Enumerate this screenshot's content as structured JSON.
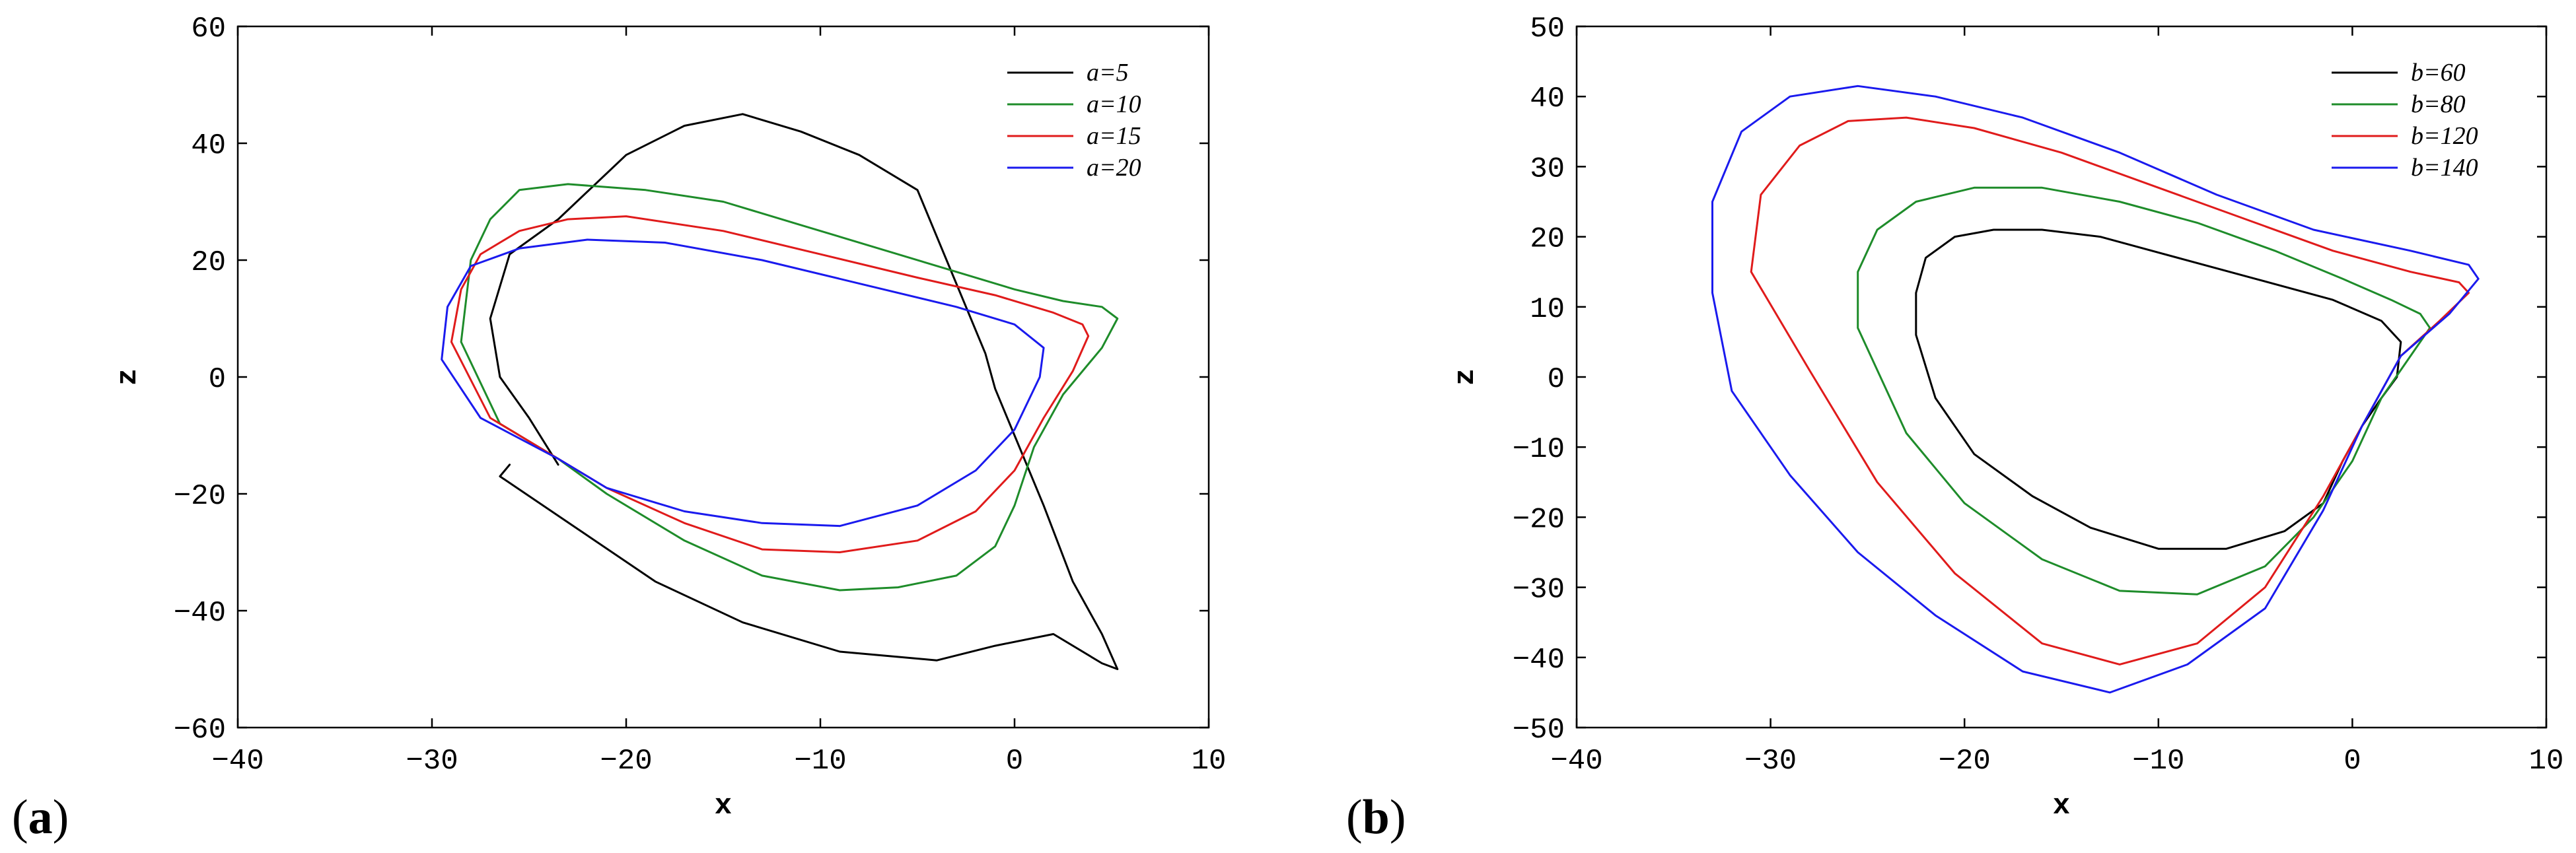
{
  "chart_data": [
    {
      "type": "line",
      "panel_label": "a",
      "xlabel": "x",
      "ylabel": "z",
      "xlim": [
        -40,
        10
      ],
      "ylim": [
        -60,
        60
      ],
      "xticks": [
        -40,
        -30,
        -20,
        -10,
        0,
        10
      ],
      "yticks": [
        -60,
        -40,
        -20,
        0,
        20,
        40,
        60
      ],
      "grid": false,
      "legend_position": "top-right",
      "series": [
        {
          "name": "a=5",
          "color": "#000000",
          "x": [
            -23.5,
            -25,
            -26.5,
            -27,
            -26,
            -23.5,
            -20,
            -17,
            -14,
            -11,
            -8,
            -5,
            -3.5,
            -2.5,
            -1.5,
            -1,
            0,
            1.5,
            3,
            4.5,
            5.3,
            4.5,
            2,
            -1,
            -4,
            -9,
            -14,
            -18.5,
            -22.5,
            -26.5,
            -26
          ],
          "z": [
            -15,
            -7,
            0,
            10,
            21,
            27,
            38,
            43,
            45,
            42,
            38,
            32,
            20,
            12,
            4,
            -2,
            -10,
            -22,
            -35,
            -44,
            -50,
            -49,
            -44,
            -46,
            -48.5,
            -47,
            -42,
            -35,
            -26,
            -17,
            -15
          ]
        },
        {
          "name": "a=10",
          "color": "#1e8c2a",
          "x": [
            -23.5,
            -26.5,
            -28.5,
            -28,
            -27,
            -25.5,
            -23,
            -19,
            -15,
            -11,
            -7,
            -3,
            0,
            2.5,
            4.5,
            5.3,
            4.5,
            2.5,
            1,
            0,
            -1,
            -3,
            -6,
            -9,
            -13,
            -17,
            -21,
            -23.5
          ],
          "z": [
            -14,
            -8,
            6,
            20,
            27,
            32,
            33,
            32,
            30,
            26,
            22,
            18,
            15,
            13,
            12,
            10,
            5,
            -3,
            -12,
            -22,
            -29,
            -34,
            -36,
            -36.5,
            -34,
            -28,
            -20,
            -14
          ]
        },
        {
          "name": "a=15",
          "color": "#e01b1b",
          "x": [
            -23.5,
            -27,
            -29,
            -28.5,
            -27.5,
            -25.5,
            -23,
            -20,
            -15,
            -10,
            -5,
            -1,
            2,
            3.5,
            3.8,
            3,
            1.5,
            0,
            -2,
            -5,
            -9,
            -13,
            -17,
            -21,
            -23.5
          ],
          "z": [
            -14,
            -7,
            6,
            15,
            21,
            25,
            27,
            27.5,
            25,
            21,
            17,
            14,
            11,
            9,
            7,
            1,
            -7,
            -16,
            -23,
            -28,
            -30,
            -29.5,
            -25,
            -19,
            -14
          ]
        },
        {
          "name": "a=20",
          "color": "#1a1aee",
          "x": [
            -23.5,
            -27.5,
            -29.5,
            -29.2,
            -28,
            -25.5,
            -22,
            -18,
            -13,
            -8,
            -3,
            0,
            1.5,
            1.3,
            0,
            -2,
            -5,
            -9,
            -13,
            -17,
            -21,
            -23.5
          ],
          "z": [
            -14,
            -7,
            3,
            12,
            19,
            22,
            23.5,
            23,
            20,
            16,
            12,
            9,
            5,
            0,
            -9,
            -16,
            -22,
            -25.5,
            -25,
            -23,
            -19,
            -14
          ]
        }
      ]
    },
    {
      "type": "line",
      "panel_label": "b",
      "xlabel": "x",
      "ylabel": "z",
      "xlim": [
        -40,
        10
      ],
      "ylim": [
        -50,
        50
      ],
      "xticks": [
        -40,
        -30,
        -20,
        -10,
        0,
        10
      ],
      "yticks": [
        -50,
        -40,
        -30,
        -20,
        -10,
        0,
        10,
        20,
        30,
        40,
        50
      ],
      "grid": false,
      "legend_position": "top-right",
      "series": [
        {
          "name": "b=60",
          "color": "#000000",
          "x": [
            -22.5,
            -22.5,
            -22,
            -20.5,
            -18.5,
            -16,
            -13,
            -9,
            -5,
            -1,
            1.5,
            2.5,
            2.3,
            1.5,
            0.5,
            -0.5,
            -1.5,
            -3.5,
            -6.5,
            -10,
            -13.5,
            -16.5,
            -19.5,
            -21.5,
            -22.5
          ],
          "z": [
            6,
            12,
            17,
            20,
            21,
            21,
            20,
            17,
            14,
            11,
            8,
            5,
            0,
            -3,
            -7,
            -12,
            -18,
            -22,
            -24.5,
            -24.5,
            -21.5,
            -17,
            -11,
            -3,
            6
          ]
        },
        {
          "name": "b=80",
          "color": "#1e8c2a",
          "x": [
            -25.5,
            -25.5,
            -24.5,
            -22.5,
            -19.5,
            -16,
            -12,
            -8,
            -4,
            -0.5,
            2,
            3.5,
            4,
            3,
            1.5,
            0,
            -2,
            -4.5,
            -8,
            -12,
            -16,
            -20,
            -23,
            -25.5
          ],
          "z": [
            7,
            15,
            21,
            25,
            27,
            27,
            25,
            22,
            18,
            14,
            11,
            9,
            7,
            3,
            -3,
            -12,
            -20,
            -27,
            -31,
            -30.5,
            -26,
            -18,
            -8,
            7
          ]
        },
        {
          "name": "b=120",
          "color": "#e01b1b",
          "x": [
            -31,
            -30.5,
            -28.5,
            -26,
            -23,
            -19.5,
            -15,
            -10,
            -5,
            -1,
            3,
            5.5,
            6,
            4.5,
            2.5,
            0.5,
            -1.5,
            -4.5,
            -8,
            -12,
            -16,
            -20.5,
            -24.5,
            -28,
            -31
          ],
          "z": [
            15,
            26,
            33,
            36.5,
            37,
            35.5,
            32,
            27,
            22,
            18,
            15,
            13.5,
            12,
            8,
            3,
            -7,
            -17,
            -30,
            -38,
            -41,
            -38,
            -28,
            -15,
            1,
            15
          ]
        },
        {
          "name": "b=140",
          "color": "#1a1aee",
          "x": [
            -33,
            -33,
            -31.5,
            -29,
            -25.5,
            -21.5,
            -17,
            -12,
            -7,
            -2,
            3,
            6,
            6.5,
            5,
            2.5,
            0.5,
            -1.5,
            -4.5,
            -8.5,
            -12.5,
            -17,
            -21.5,
            -25.5,
            -29,
            -32,
            -33
          ],
          "z": [
            12,
            25,
            35,
            40,
            41.5,
            40,
            37,
            32,
            26,
            21,
            18,
            16,
            14,
            9,
            3,
            -7,
            -19,
            -33,
            -41,
            -45,
            -42,
            -34,
            -25,
            -14,
            -2,
            12
          ]
        }
      ]
    }
  ]
}
